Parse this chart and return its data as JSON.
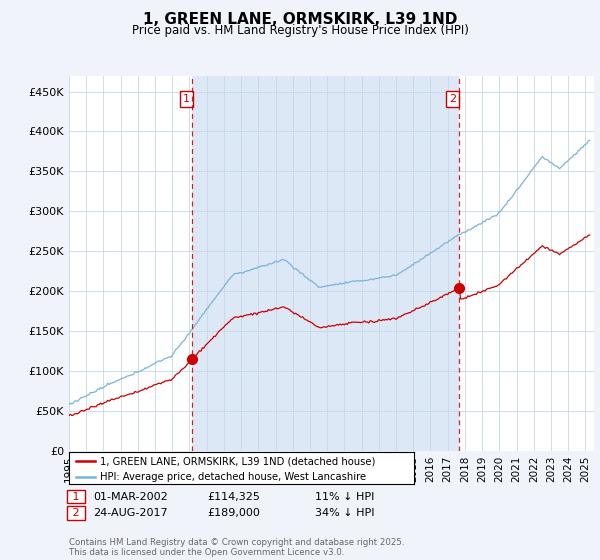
{
  "title": "1, GREEN LANE, ORMSKIRK, L39 1ND",
  "subtitle": "Price paid vs. HM Land Registry's House Price Index (HPI)",
  "ylim": [
    0,
    470000
  ],
  "yticks": [
    0,
    50000,
    100000,
    150000,
    200000,
    250000,
    300000,
    350000,
    400000,
    450000
  ],
  "ytick_labels": [
    "£0",
    "£50K",
    "£100K",
    "£150K",
    "£200K",
    "£250K",
    "£300K",
    "£350K",
    "£400K",
    "£450K"
  ],
  "xlim_start": 1995.0,
  "xlim_end": 2025.5,
  "hpi_color": "#7ab4d8",
  "price_color": "#cc0000",
  "vline_color": "#cc0000",
  "shade_color": "#dce8f5",
  "purchase1_date": 2002.17,
  "purchase1_price": 114325,
  "purchase1_label": "1",
  "purchase2_date": 2017.65,
  "purchase2_price": 189000,
  "purchase2_label": "2",
  "legend_line1": "1, GREEN LANE, ORMSKIRK, L39 1ND (detached house)",
  "legend_line2": "HPI: Average price, detached house, West Lancashire",
  "annotation1_date": "01-MAR-2002",
  "annotation1_price": "£114,325",
  "annotation1_hpi": "11% ↓ HPI",
  "annotation2_date": "24-AUG-2017",
  "annotation2_price": "£189,000",
  "annotation2_hpi": "34% ↓ HPI",
  "footer": "Contains HM Land Registry data © Crown copyright and database right 2025.\nThis data is licensed under the Open Government Licence v3.0.",
  "bg_color": "#f0f4fa",
  "plot_bg_color": "#ffffff"
}
